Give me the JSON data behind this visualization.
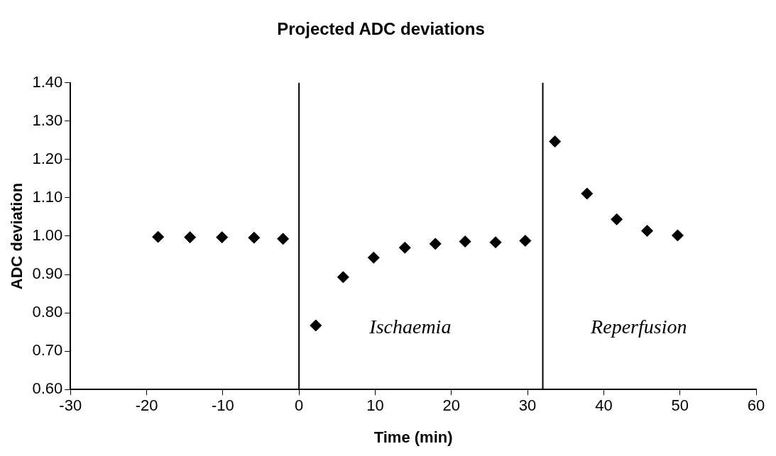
{
  "chart_data": {
    "type": "scatter",
    "title": "Projected ADC deviations",
    "xlabel": "Time (min)",
    "ylabel": "ADC deviation",
    "x": [
      -18.5,
      -14.3,
      -10.1,
      -5.9,
      -2.1,
      2.2,
      5.8,
      9.8,
      13.9,
      17.9,
      21.8,
      25.8,
      29.7,
      33.6,
      37.8,
      41.7,
      45.7,
      49.7
    ],
    "series": [
      {
        "color": "#000000",
        "values": [
          0.998,
          0.997,
          0.997,
          0.996,
          0.993,
          0.767,
          0.893,
          0.944,
          0.97,
          0.98,
          0.986,
          0.984,
          0.988,
          1.247,
          1.111,
          1.044,
          1.014,
          1.002
        ]
      }
    ],
    "xlim": [
      -30,
      60
    ],
    "xticks": [
      -30,
      -20,
      -10,
      0,
      10,
      20,
      30,
      40,
      50,
      60
    ],
    "ylim": [
      0.6,
      1.4
    ],
    "yticks": [
      {
        "value": 0.6,
        "label": "0.60"
      },
      {
        "value": 0.7,
        "label": "0.70"
      },
      {
        "value": 0.8,
        "label": "0.80"
      },
      {
        "value": 0.9,
        "label": "0.90"
      },
      {
        "value": 1.0,
        "label": "1.00"
      },
      {
        "value": 1.1,
        "label": "1.10"
      },
      {
        "value": 1.2,
        "label": "1.20"
      },
      {
        "value": 1.3,
        "label": "1.30"
      },
      {
        "value": 1.4,
        "label": "1.40"
      }
    ],
    "ref_lines": [
      {
        "axis": "x",
        "value": 0,
        "color": "#000000"
      },
      {
        "axis": "x",
        "value": 32,
        "color": "#000000"
      }
    ],
    "annotations": [
      "Ischaemia",
      "Reperfusion"
    ],
    "grid": false,
    "legend": false,
    "marker": "diamond"
  }
}
